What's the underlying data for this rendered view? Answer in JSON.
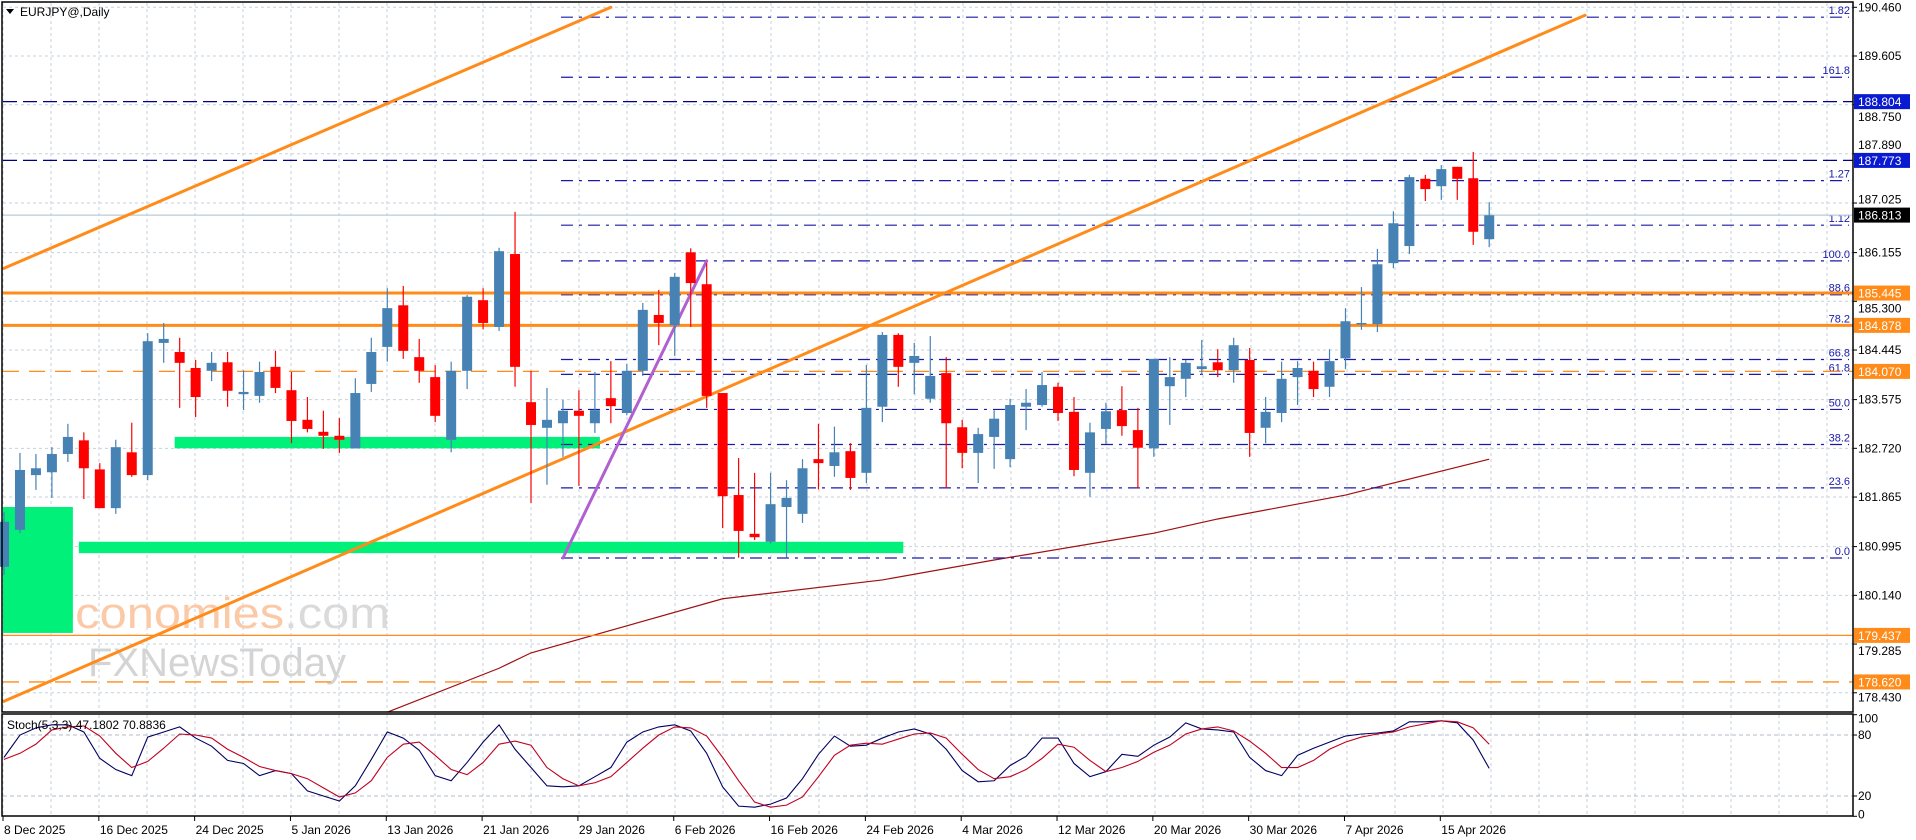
{
  "title": "EURJPY@,Daily",
  "watermark": {
    "brand_main": "economies",
    "brand_suffix": ".com",
    "line2": "FXNewsToday"
  },
  "colors": {
    "bull": "#4682b4",
    "bear": "#ff0000",
    "orange": "#ff8c1a",
    "navy": "#000080",
    "fib": "#1a1aa8",
    "zone": "#00f07a",
    "ma": "#a01010",
    "stoch_main": "#000060",
    "stoch_signal": "#c00020",
    "grid": "#c4d2dc",
    "tag_blue": "#0a1ad0",
    "tag_black": "#000000"
  },
  "price_axis": {
    "ticks": [
      "190.460",
      "189.605",
      "188.750",
      "187.890",
      "187.025",
      "186.155",
      "185.300",
      "184.445",
      "183.575",
      "182.720",
      "181.865",
      "180.995",
      "180.140",
      "179.285",
      "178.430"
    ]
  },
  "horizontal_lines": [
    {
      "price": 188.804,
      "label": "188.804",
      "color": "#000080",
      "tag_color": "#0a1ad0",
      "style": "dashed",
      "weight": "thin"
    },
    {
      "price": 187.773,
      "label": "187.773",
      "color": "#000080",
      "tag_color": "#0a1ad0",
      "style": "dashed",
      "weight": "thin"
    },
    {
      "price": 186.813,
      "label": "186.813",
      "color": "#b8ccd8",
      "tag_color": "#000000",
      "style": "solid",
      "weight": "thin"
    },
    {
      "price": 185.445,
      "label": "185.445",
      "color": "#ff8c1a",
      "tag_color": "#ff8c1a",
      "style": "solid",
      "weight": "thick"
    },
    {
      "price": 184.878,
      "label": "184.878",
      "color": "#ff8c1a",
      "tag_color": "#ff8c1a",
      "style": "solid",
      "weight": "thick"
    },
    {
      "price": 184.07,
      "label": "184.070",
      "color": "#ff8c1a",
      "tag_color": "#ff8c1a",
      "style": "dashed",
      "weight": "thin"
    },
    {
      "price": 179.437,
      "label": "179.437",
      "color": "#ff8c1a",
      "tag_color": "#ff8c1a",
      "style": "solid",
      "weight": "thin"
    },
    {
      "price": 178.62,
      "label": "178.620",
      "color": "#ff8c1a",
      "tag_color": "#ff8c1a",
      "style": "dashed",
      "weight": "thin"
    }
  ],
  "fibonacci": {
    "from": {
      "date": "2026-01-28",
      "price": 180.795
    },
    "to": {
      "date": "2026-02-10",
      "price": 186.01
    },
    "levels": [
      {
        "ratio": 0.0,
        "label": "0.0"
      },
      {
        "ratio": 0.236,
        "label": "23.6"
      },
      {
        "ratio": 0.382,
        "label": "38.2"
      },
      {
        "ratio": 0.5,
        "label": "50.0"
      },
      {
        "ratio": 0.618,
        "label": "61.8"
      },
      {
        "ratio": 0.668,
        "label": "66.8"
      },
      {
        "ratio": 0.782,
        "label": "78.2"
      },
      {
        "ratio": 0.886,
        "label": "88.6"
      },
      {
        "ratio": 1.0,
        "label": "100.0"
      },
      {
        "ratio": 1.12,
        "label": "1.12"
      },
      {
        "ratio": 1.27,
        "label": "1.27"
      },
      {
        "ratio": 1.618,
        "label": "161.8"
      },
      {
        "ratio": 1.82,
        "label": "1.82"
      }
    ]
  },
  "trendlines": [
    {
      "name": "channel-upper",
      "from": {
        "date": "2025-12-08",
        "price": 185.88
      },
      "to": {
        "date": "2026-02-02",
        "price": 190.46
      },
      "color": "#ff8c1a"
    },
    {
      "name": "channel-lower",
      "from": {
        "date": "2025-12-08",
        "price": 178.28
      },
      "to": {
        "date": "2026-04-28",
        "price": 190.32
      },
      "color": "#ff8c1a"
    },
    {
      "name": "fib-swing",
      "from": {
        "date": "2026-01-28",
        "price": 180.795
      },
      "to": {
        "date": "2026-02-10",
        "price": 186.01
      },
      "color": "#b060d0"
    }
  ],
  "zones": [
    {
      "from": "2025-12-08",
      "to": "2025-12-12",
      "top": 181.69,
      "bottom": 179.48
    },
    {
      "from": "2025-12-23",
      "to": "2026-01-30",
      "top": 182.92,
      "bottom": 182.72
    },
    {
      "from": "2025-12-15",
      "to": "2026-02-26",
      "top": 181.08,
      "bottom": 180.88
    }
  ],
  "chart_data": [
    {
      "type": "candlestick",
      "title": "EURJPY@,Daily",
      "ylim": [
        178.2,
        190.6
      ],
      "grid": true,
      "x_ticks": [
        {
          "date": "2025-12-08",
          "label": "8 Dec 2025"
        },
        {
          "date": "2025-12-16",
          "label": "16 Dec 2025"
        },
        {
          "date": "2025-12-24",
          "label": "24 Dec 2025"
        },
        {
          "date": "2026-01-05",
          "label": "5 Jan 2026"
        },
        {
          "date": "2026-01-13",
          "label": "13 Jan 2026"
        },
        {
          "date": "2026-01-21",
          "label": "21 Jan 2026"
        },
        {
          "date": "2026-01-29",
          "label": "29 Jan 2026"
        },
        {
          "date": "2026-02-06",
          "label": "6 Feb 2026"
        },
        {
          "date": "2026-02-16",
          "label": "16 Feb 2026"
        },
        {
          "date": "2026-02-24",
          "label": "24 Feb 2026"
        },
        {
          "date": "2026-03-04",
          "label": "4 Mar 2026"
        },
        {
          "date": "2026-03-12",
          "label": "12 Mar 2026"
        },
        {
          "date": "2026-03-20",
          "label": "20 Mar 2026"
        },
        {
          "date": "2026-03-30",
          "label": "30 Mar 2026"
        },
        {
          "date": "2026-04-07",
          "label": "7 Apr 2026"
        },
        {
          "date": "2026-04-15",
          "label": "15 Apr 2026"
        }
      ],
      "ohlc_columns": [
        "open",
        "high",
        "low",
        "close"
      ],
      "candles": [
        [
          180.64,
          181.6,
          180.5,
          181.43
        ],
        [
          181.29,
          182.64,
          181.23,
          182.34
        ],
        [
          182.25,
          182.62,
          181.99,
          182.37
        ],
        [
          182.3,
          182.74,
          181.85,
          182.62
        ],
        [
          182.62,
          183.15,
          182.48,
          182.92
        ],
        [
          182.86,
          183.0,
          181.83,
          182.37
        ],
        [
          182.35,
          182.46,
          181.67,
          181.67
        ],
        [
          181.67,
          182.87,
          181.57,
          182.74
        ],
        [
          182.65,
          183.17,
          182.22,
          182.25
        ],
        [
          182.25,
          184.74,
          182.16,
          184.6
        ],
        [
          184.57,
          184.92,
          184.22,
          184.64
        ],
        [
          184.41,
          184.66,
          183.43,
          184.22
        ],
        [
          184.13,
          184.27,
          183.27,
          183.62
        ],
        [
          184.08,
          184.41,
          183.9,
          184.22
        ],
        [
          184.23,
          184.41,
          183.45,
          183.73
        ],
        [
          183.67,
          184.09,
          183.39,
          183.71
        ],
        [
          183.64,
          184.24,
          183.52,
          184.06
        ],
        [
          184.15,
          184.43,
          183.69,
          183.78
        ],
        [
          183.74,
          184.06,
          182.81,
          183.2
        ],
        [
          183.22,
          183.62,
          183.0,
          183.06
        ],
        [
          183.01,
          183.38,
          182.71,
          182.94
        ],
        [
          182.94,
          183.25,
          182.64,
          182.87
        ],
        [
          182.72,
          183.95,
          182.72,
          183.69
        ],
        [
          183.85,
          184.66,
          183.71,
          184.41
        ],
        [
          184.5,
          185.53,
          184.24,
          185.18
        ],
        [
          185.23,
          185.57,
          184.29,
          184.43
        ],
        [
          184.32,
          184.64,
          183.87,
          184.08
        ],
        [
          183.97,
          184.18,
          183.18,
          183.29
        ],
        [
          182.87,
          184.24,
          182.65,
          184.08
        ],
        [
          184.08,
          185.41,
          183.76,
          185.38
        ],
        [
          185.32,
          185.53,
          184.81,
          184.92
        ],
        [
          184.85,
          186.24,
          184.78,
          186.18
        ],
        [
          186.13,
          186.87,
          183.8,
          184.15
        ],
        [
          183.53,
          184.08,
          181.76,
          183.13
        ],
        [
          183.08,
          183.78,
          182.08,
          183.22
        ],
        [
          183.16,
          183.57,
          182.57,
          183.38
        ],
        [
          183.38,
          183.74,
          182.06,
          183.29
        ],
        [
          183.16,
          184.06,
          182.99,
          183.39
        ],
        [
          183.6,
          184.25,
          183.16,
          183.46
        ],
        [
          183.34,
          184.2,
          183.3,
          184.08
        ],
        [
          184.08,
          185.27,
          183.99,
          185.15
        ],
        [
          185.06,
          185.5,
          184.53,
          184.92
        ],
        [
          184.88,
          185.8,
          184.34,
          185.73
        ],
        [
          186.16,
          186.23,
          184.85,
          185.62
        ],
        [
          185.6,
          185.97,
          183.43,
          183.64
        ],
        [
          183.69,
          183.69,
          181.32,
          181.88
        ],
        [
          181.9,
          182.55,
          180.8,
          181.27
        ],
        [
          181.22,
          182.29,
          181.11,
          181.16
        ],
        [
          181.08,
          182.29,
          181.05,
          181.74
        ],
        [
          181.69,
          182.16,
          180.8,
          181.85
        ],
        [
          181.57,
          182.53,
          181.41,
          182.37
        ],
        [
          182.53,
          183.15,
          182.0,
          182.46
        ],
        [
          182.41,
          183.1,
          182.22,
          182.65
        ],
        [
          182.67,
          182.81,
          181.99,
          182.2
        ],
        [
          182.29,
          184.18,
          182.11,
          183.43
        ],
        [
          183.45,
          184.76,
          183.18,
          184.71
        ],
        [
          184.71,
          184.74,
          183.8,
          184.15
        ],
        [
          184.22,
          184.57,
          183.67,
          184.34
        ],
        [
          183.59,
          184.69,
          183.52,
          183.99
        ],
        [
          184.04,
          184.32,
          182.02,
          183.16
        ],
        [
          183.09,
          183.22,
          182.37,
          182.64
        ],
        [
          182.64,
          183.08,
          182.11,
          182.97
        ],
        [
          182.92,
          183.39,
          182.36,
          183.24
        ],
        [
          182.53,
          183.59,
          182.39,
          183.48
        ],
        [
          183.45,
          183.76,
          183.04,
          183.52
        ],
        [
          183.48,
          184.06,
          183.45,
          183.83
        ],
        [
          183.8,
          183.87,
          183.2,
          183.34
        ],
        [
          183.36,
          183.62,
          182.23,
          182.34
        ],
        [
          182.29,
          183.17,
          181.87,
          183.0
        ],
        [
          183.06,
          183.52,
          182.8,
          183.37
        ],
        [
          183.39,
          183.81,
          182.94,
          183.11
        ],
        [
          183.04,
          183.43,
          182.02,
          182.73
        ],
        [
          182.72,
          184.29,
          182.57,
          184.29
        ],
        [
          183.81,
          184.32,
          183.13,
          183.97
        ],
        [
          183.94,
          184.27,
          183.62,
          184.22
        ],
        [
          184.11,
          184.62,
          184.01,
          184.16
        ],
        [
          184.23,
          184.46,
          183.97,
          184.09
        ],
        [
          184.09,
          184.66,
          183.87,
          184.53
        ],
        [
          184.27,
          184.48,
          182.57,
          182.99
        ],
        [
          183.08,
          183.62,
          182.81,
          183.36
        ],
        [
          183.34,
          184.24,
          183.18,
          183.94
        ],
        [
          183.97,
          184.25,
          183.48,
          184.13
        ],
        [
          184.08,
          184.24,
          183.62,
          183.76
        ],
        [
          183.8,
          184.46,
          183.62,
          184.25
        ],
        [
          184.3,
          185.18,
          184.11,
          184.95
        ],
        [
          184.9,
          185.55,
          184.8,
          184.92
        ],
        [
          184.9,
          186.22,
          184.76,
          185.95
        ],
        [
          185.97,
          186.88,
          185.88,
          186.67
        ],
        [
          186.27,
          187.52,
          186.13,
          187.48
        ],
        [
          187.45,
          187.52,
          187.06,
          187.27
        ],
        [
          187.32,
          187.69,
          187.08,
          187.62
        ],
        [
          187.66,
          187.66,
          187.08,
          187.45
        ],
        [
          187.46,
          187.92,
          186.29,
          186.52
        ],
        [
          186.39,
          187.04,
          186.25,
          186.81
        ]
      ],
      "moving_average": [
        {
          "date": "2026-01-13",
          "value": 178.09
        },
        {
          "date": "2026-01-22",
          "value": 178.86
        },
        {
          "date": "2026-01-26",
          "value": 179.13
        },
        {
          "date": "2026-02-11",
          "value": 180.08
        },
        {
          "date": "2026-02-25",
          "value": 180.41
        },
        {
          "date": "2026-03-06",
          "value": 180.76
        },
        {
          "date": "2026-03-20",
          "value": 181.23
        },
        {
          "date": "2026-03-26",
          "value": 181.48
        },
        {
          "date": "2026-04-07",
          "value": 181.9
        },
        {
          "date": "2026-04-20",
          "value": 182.53
        }
      ]
    },
    {
      "type": "line",
      "title": "Stoch(5,3,3)",
      "main_value": "47.1802",
      "signal_value": "70.8836",
      "ylim": [
        0,
        100
      ],
      "y_ticks": [
        "100",
        "80",
        "20",
        "0"
      ],
      "levels": [
        80,
        20
      ],
      "series": [
        {
          "values": [
            58,
            80,
            87,
            90,
            90,
            83,
            57,
            46,
            40,
            78,
            83,
            88,
            77,
            69,
            55,
            52,
            40,
            45,
            42,
            25,
            20,
            15,
            30,
            56,
            83,
            77,
            65,
            40,
            35,
            53,
            73,
            90,
            66,
            48,
            30,
            29,
            30,
            39,
            48,
            73,
            83,
            88,
            90,
            84,
            62,
            29,
            10,
            9,
            12,
            18,
            37,
            61,
            79,
            69,
            70,
            77,
            83,
            86,
            81,
            66,
            45,
            34,
            35,
            50,
            59,
            77,
            77,
            52,
            39,
            44,
            61,
            59,
            70,
            78,
            92,
            86,
            85,
            83,
            58,
            45,
            40,
            60,
            67,
            73,
            79,
            81,
            82,
            84,
            93,
            93,
            94,
            92,
            75,
            47.18
          ]
        },
        {
          "values": [
            56,
            62,
            71,
            85,
            88,
            89,
            79,
            62,
            48,
            54,
            67,
            81,
            80,
            77,
            66,
            58,
            49,
            45,
            42,
            37,
            28,
            19,
            23,
            35,
            58,
            71,
            73,
            60,
            46,
            41,
            53,
            71,
            74,
            70,
            48,
            37,
            30,
            33,
            39,
            53,
            67,
            80,
            88,
            87,
            79,
            58,
            35,
            14,
            9,
            11,
            19,
            39,
            60,
            70,
            72,
            71,
            76,
            81,
            82,
            77,
            61,
            46,
            37,
            39,
            46,
            57,
            71,
            68,
            55,
            44,
            48,
            54,
            63,
            70,
            81,
            86,
            88,
            84,
            74,
            62,
            48,
            48,
            55,
            66,
            73,
            78,
            81,
            83,
            88,
            91,
            94,
            93,
            87,
            70.88
          ]
        }
      ]
    }
  ]
}
